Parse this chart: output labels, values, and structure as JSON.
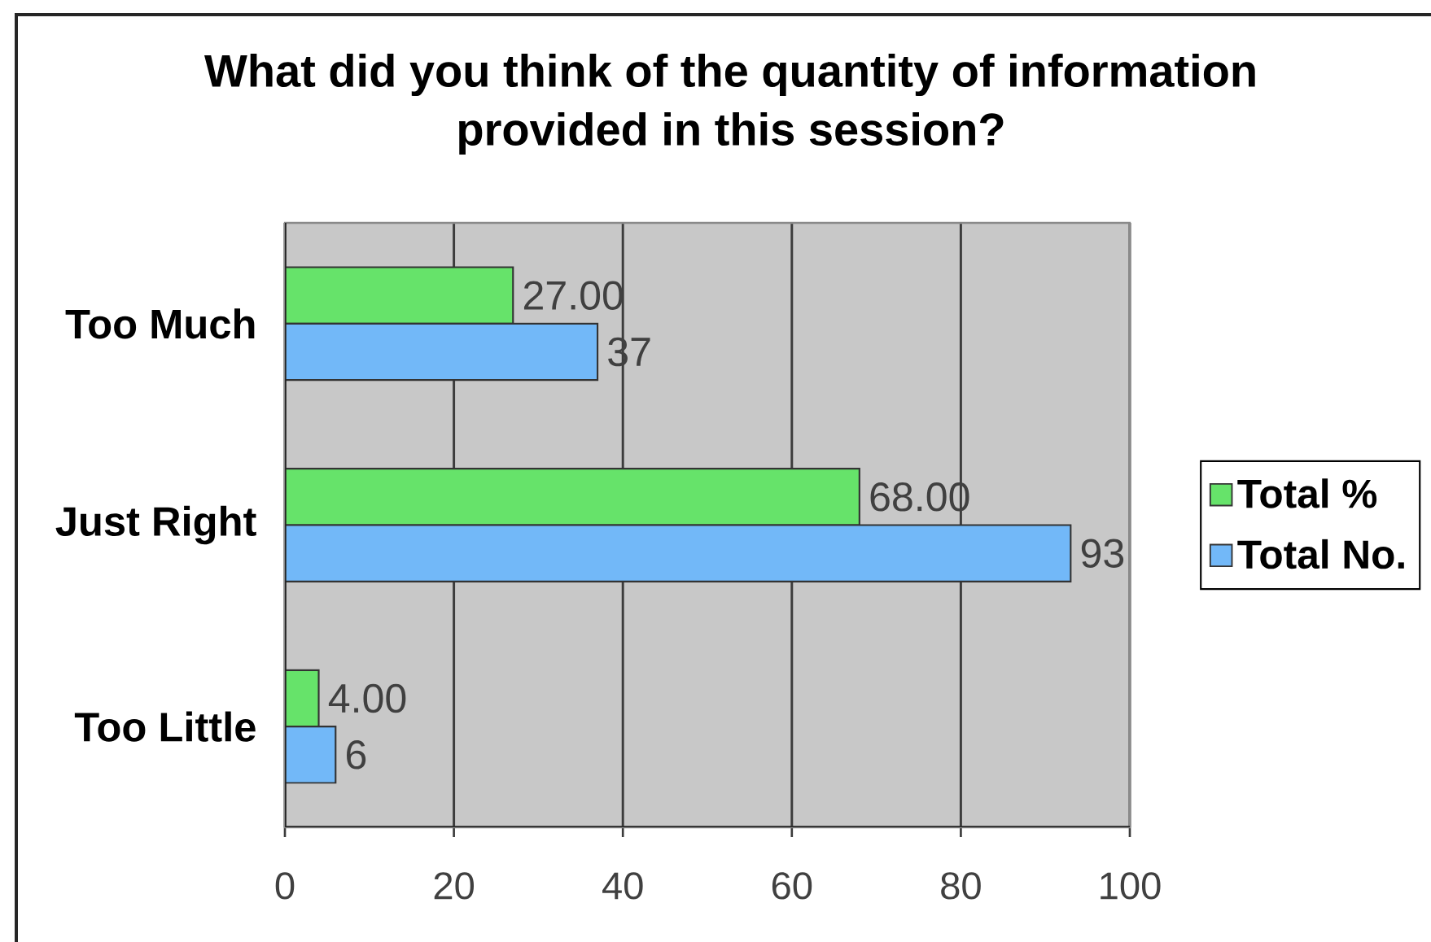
{
  "chart_data": {
    "type": "bar",
    "orientation": "horizontal",
    "title": "What did you think of the quantity of information provided in this session?",
    "categories": [
      "Too  Much",
      "Just Right",
      "Too Little"
    ],
    "series": [
      {
        "name": "Total %",
        "color": "#66e36a",
        "values": [
          27,
          68,
          4
        ],
        "value_labels": [
          "27.00",
          "68.00",
          "4.00"
        ]
      },
      {
        "name": "Total No.",
        "color": "#72b8f8",
        "values": [
          37,
          93,
          6
        ],
        "value_labels": [
          "37",
          "93",
          "6"
        ]
      }
    ],
    "xlim": [
      0,
      100
    ],
    "xticks": [
      0,
      20,
      40,
      60,
      80,
      100
    ],
    "grid": "x",
    "legend": "right"
  }
}
